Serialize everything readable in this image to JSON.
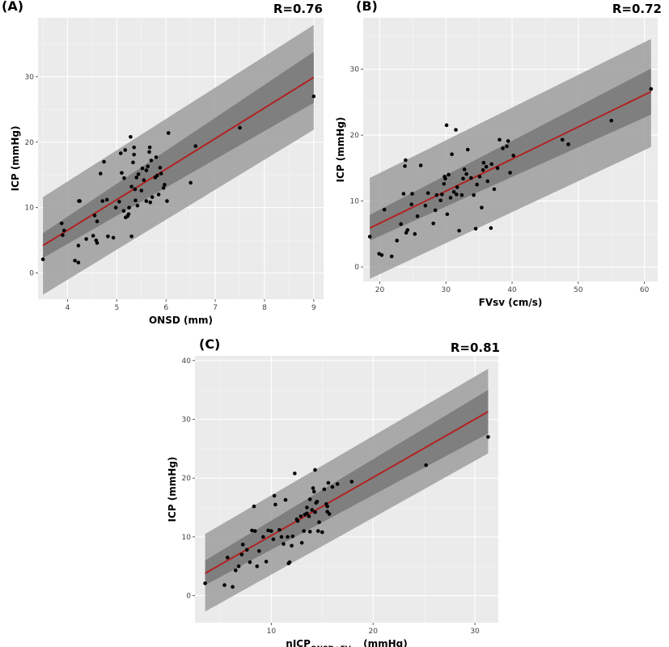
{
  "chart_data": [
    {
      "type": "scatter",
      "panel_label": "(A)",
      "stat_label": "R=0.76",
      "xlabel": "ONSD (mm)",
      "xlabel_sub": "",
      "xlabel_tail": "",
      "ylabel": "ICP (mmHg)",
      "xlim": [
        3.4,
        9.2
      ],
      "ylim": [
        -4,
        39
      ],
      "xticks": [
        4,
        5,
        6,
        7,
        8,
        9
      ],
      "yticks": [
        0,
        10,
        20,
        30
      ],
      "grid": true,
      "line_color": "#b22222",
      "band_outer_color": "#9e9e9e",
      "band_inner_color": "#7a7a7a",
      "panel_bg": "#ebebeb",
      "fit": {
        "x": [
          3.5,
          9.0
        ],
        "y": [
          4.2,
          29.9
        ]
      },
      "band_outer": {
        "x": [
          3.5,
          9.0
        ],
        "lower": [
          -3.3,
          21.9
        ],
        "upper": [
          11.6,
          37.9
        ]
      },
      "band_inner": {
        "x": [
          3.5,
          9.0
        ],
        "lower": [
          2.3,
          26.0
        ],
        "upper": [
          6.1,
          33.8
        ]
      },
      "points": [
        [
          3.5,
          2.1
        ],
        [
          3.88,
          7.6
        ],
        [
          3.9,
          5.8
        ],
        [
          3.93,
          6.5
        ],
        [
          4.15,
          1.9
        ],
        [
          4.22,
          1.6
        ],
        [
          4.23,
          11.0
        ],
        [
          4.25,
          11.0
        ],
        [
          4.22,
          4.2
        ],
        [
          4.38,
          5.2
        ],
        [
          4.52,
          5.7
        ],
        [
          4.55,
          8.8
        ],
        [
          4.58,
          5.0
        ],
        [
          4.6,
          4.6
        ],
        [
          4.6,
          7.9
        ],
        [
          4.67,
          15.2
        ],
        [
          4.71,
          11.0
        ],
        [
          4.74,
          17.0
        ],
        [
          4.8,
          11.2
        ],
        [
          4.82,
          5.6
        ],
        [
          4.93,
          5.4
        ],
        [
          4.98,
          10.0
        ],
        [
          5.05,
          10.9
        ],
        [
          5.08,
          18.3
        ],
        [
          5.1,
          15.3
        ],
        [
          5.14,
          9.5
        ],
        [
          5.15,
          14.5
        ],
        [
          5.17,
          18.8
        ],
        [
          5.18,
          8.5
        ],
        [
          5.22,
          8.7
        ],
        [
          5.24,
          9.0
        ],
        [
          5.25,
          10.0
        ],
        [
          5.28,
          20.8
        ],
        [
          5.3,
          5.6
        ],
        [
          5.3,
          13.2
        ],
        [
          5.33,
          16.9
        ],
        [
          5.35,
          18.1
        ],
        [
          5.35,
          19.2
        ],
        [
          5.37,
          12.8
        ],
        [
          5.38,
          11.1
        ],
        [
          5.4,
          14.6
        ],
        [
          5.42,
          10.3
        ],
        [
          5.44,
          15.1
        ],
        [
          5.5,
          12.6
        ],
        [
          5.52,
          16.0
        ],
        [
          5.55,
          14.2
        ],
        [
          5.6,
          11.0
        ],
        [
          5.6,
          15.7
        ],
        [
          5.63,
          16.3
        ],
        [
          5.66,
          18.5
        ],
        [
          5.67,
          19.2
        ],
        [
          5.68,
          10.8
        ],
        [
          5.7,
          17.2
        ],
        [
          5.72,
          11.6
        ],
        [
          5.78,
          14.6
        ],
        [
          5.8,
          17.7
        ],
        [
          5.82,
          14.9
        ],
        [
          5.85,
          12.0
        ],
        [
          5.88,
          16.1
        ],
        [
          5.9,
          15.2
        ],
        [
          5.95,
          13.0
        ],
        [
          5.97,
          13.5
        ],
        [
          6.02,
          11.0
        ],
        [
          6.05,
          21.4
        ],
        [
          6.5,
          13.8
        ],
        [
          6.6,
          19.4
        ],
        [
          7.5,
          22.2
        ],
        [
          9.0,
          27.0
        ]
      ]
    },
    {
      "type": "scatter",
      "panel_label": "(B)",
      "stat_label": "R=0.72",
      "xlabel": "FVsv (cm/s)",
      "xlabel_sub": "",
      "xlabel_tail": "",
      "ylabel": "ICP (mmHg)",
      "xlim": [
        17.5,
        62
      ],
      "ylim": [
        -2.2,
        37.8
      ],
      "xticks": [
        20,
        30,
        40,
        50,
        60
      ],
      "yticks": [
        0,
        10,
        20,
        30
      ],
      "grid": true,
      "line_color": "#b22222",
      "band_outer_color": "#9e9e9e",
      "band_inner_color": "#7a7a7a",
      "panel_bg": "#ebebeb",
      "fit": {
        "x": [
          18.5,
          61.0
        ],
        "y": [
          5.9,
          26.6
        ]
      },
      "band_outer": {
        "x": [
          18.5,
          61.0
        ],
        "lower": [
          -1.8,
          18.2
        ],
        "upper": [
          13.5,
          34.6
        ]
      },
      "band_inner": {
        "x": [
          18.5,
          61.0
        ],
        "lower": [
          4.0,
          23.1
        ],
        "upper": [
          7.9,
          30.1
        ]
      },
      "points": [
        [
          18.5,
          4.6
        ],
        [
          19.9,
          2.0
        ],
        [
          20.3,
          1.8
        ],
        [
          20.7,
          8.7
        ],
        [
          21.8,
          1.6
        ],
        [
          22.6,
          4.0
        ],
        [
          23.2,
          6.5
        ],
        [
          23.6,
          11.1
        ],
        [
          23.8,
          15.3
        ],
        [
          23.9,
          16.2
        ],
        [
          24.0,
          5.2
        ],
        [
          24.2,
          5.6
        ],
        [
          24.8,
          9.5
        ],
        [
          24.9,
          11.1
        ],
        [
          25.3,
          5.0
        ],
        [
          25.7,
          7.7
        ],
        [
          26.2,
          15.4
        ],
        [
          26.9,
          9.3
        ],
        [
          27.3,
          11.2
        ],
        [
          28.1,
          6.6
        ],
        [
          28.4,
          8.6
        ],
        [
          28.6,
          10.9
        ],
        [
          29.2,
          10.1
        ],
        [
          29.4,
          11.0
        ],
        [
          29.7,
          12.6
        ],
        [
          29.8,
          13.7
        ],
        [
          29.9,
          13.4
        ],
        [
          30.1,
          21.5
        ],
        [
          30.2,
          8.0
        ],
        [
          30.4,
          14.0
        ],
        [
          30.7,
          10.5
        ],
        [
          30.9,
          17.1
        ],
        [
          31.2,
          11.4
        ],
        [
          31.5,
          20.8
        ],
        [
          31.6,
          11.0
        ],
        [
          31.7,
          12.1
        ],
        [
          32.0,
          5.5
        ],
        [
          32.4,
          10.9
        ],
        [
          32.6,
          13.4
        ],
        [
          32.8,
          14.8
        ],
        [
          33.1,
          14.1
        ],
        [
          33.3,
          17.8
        ],
        [
          33.8,
          13.5
        ],
        [
          34.2,
          10.9
        ],
        [
          34.5,
          5.8
        ],
        [
          34.7,
          12.5
        ],
        [
          35.1,
          13.7
        ],
        [
          35.4,
          9.0
        ],
        [
          35.6,
          14.7
        ],
        [
          35.7,
          15.8
        ],
        [
          36.1,
          15.2
        ],
        [
          36.3,
          13.0
        ],
        [
          36.8,
          5.9
        ],
        [
          36.9,
          15.6
        ],
        [
          37.3,
          11.8
        ],
        [
          37.8,
          15.0
        ],
        [
          38.1,
          19.3
        ],
        [
          38.6,
          18.0
        ],
        [
          39.2,
          18.3
        ],
        [
          39.4,
          19.1
        ],
        [
          39.7,
          14.3
        ],
        [
          40.2,
          16.9
        ],
        [
          47.6,
          19.3
        ],
        [
          48.5,
          18.6
        ],
        [
          55.0,
          22.2
        ],
        [
          61.0,
          27.0
        ]
      ]
    },
    {
      "type": "scatter",
      "panel_label": "(C)",
      "stat_label": "R=0.81",
      "xlabel": "nICP",
      "xlabel_sub": "ONSD+FVsv",
      "xlabel_tail": " (mmHg)",
      "ylabel": "ICP (mmHg)",
      "xlim": [
        2.5,
        32.3
      ],
      "ylim": [
        -4.6,
        40.8
      ],
      "xticks": [
        10,
        20,
        30
      ],
      "yticks": [
        0,
        10,
        20,
        30,
        40
      ],
      "grid": true,
      "line_color": "#b22222",
      "band_outer_color": "#9e9e9e",
      "band_inner_color": "#7a7a7a",
      "panel_bg": "#ebebeb",
      "fit": {
        "x": [
          3.5,
          31.3
        ],
        "y": [
          3.8,
          31.3
        ]
      },
      "band_outer": {
        "x": [
          3.5,
          31.3
        ],
        "lower": [
          -2.7,
          24.2
        ],
        "upper": [
          10.5,
          38.6
        ]
      },
      "band_inner": {
        "x": [
          3.5,
          31.3
        ],
        "lower": [
          1.8,
          27.6
        ],
        "upper": [
          6.0,
          35.0
        ]
      },
      "points": [
        [
          3.5,
          2.1
        ],
        [
          5.4,
          1.8
        ],
        [
          5.7,
          6.5
        ],
        [
          6.2,
          1.5
        ],
        [
          6.5,
          4.3
        ],
        [
          6.8,
          5.0
        ],
        [
          7.1,
          7.0
        ],
        [
          7.2,
          8.7
        ],
        [
          7.6,
          7.8
        ],
        [
          7.9,
          5.7
        ],
        [
          8.1,
          11.1
        ],
        [
          8.3,
          15.2
        ],
        [
          8.4,
          11.0
        ],
        [
          8.6,
          5.0
        ],
        [
          8.8,
          7.6
        ],
        [
          9.2,
          10.0
        ],
        [
          9.5,
          5.8
        ],
        [
          9.7,
          11.1
        ],
        [
          10.0,
          11.0
        ],
        [
          10.2,
          9.6
        ],
        [
          10.3,
          17.0
        ],
        [
          10.4,
          15.5
        ],
        [
          10.8,
          11.2
        ],
        [
          11.0,
          10.0
        ],
        [
          11.2,
          8.8
        ],
        [
          11.4,
          16.3
        ],
        [
          11.6,
          10.0
        ],
        [
          11.7,
          5.5
        ],
        [
          11.8,
          5.7
        ],
        [
          12.0,
          8.5
        ],
        [
          12.1,
          10.1
        ],
        [
          12.3,
          20.8
        ],
        [
          12.5,
          13.0
        ],
        [
          12.6,
          12.7
        ],
        [
          12.9,
          13.5
        ],
        [
          13.0,
          9.0
        ],
        [
          13.2,
          11.0
        ],
        [
          13.3,
          13.8
        ],
        [
          13.5,
          14.0
        ],
        [
          13.5,
          15.0
        ],
        [
          13.7,
          13.5
        ],
        [
          13.8,
          16.4
        ],
        [
          13.8,
          10.9
        ],
        [
          14.0,
          14.6
        ],
        [
          14.1,
          18.3
        ],
        [
          14.2,
          17.7
        ],
        [
          14.3,
          21.4
        ],
        [
          14.3,
          14.2
        ],
        [
          14.4,
          15.8
        ],
        [
          14.5,
          16.0
        ],
        [
          14.6,
          11.0
        ],
        [
          14.7,
          12.5
        ],
        [
          15.0,
          10.8
        ],
        [
          15.2,
          18.1
        ],
        [
          15.4,
          15.6
        ],
        [
          15.5,
          15.2
        ],
        [
          15.5,
          14.3
        ],
        [
          15.6,
          19.2
        ],
        [
          15.7,
          13.9
        ],
        [
          16.0,
          18.5
        ],
        [
          16.5,
          19.0
        ],
        [
          17.9,
          19.4
        ],
        [
          25.2,
          22.2
        ],
        [
          31.3,
          27.0
        ]
      ]
    }
  ]
}
